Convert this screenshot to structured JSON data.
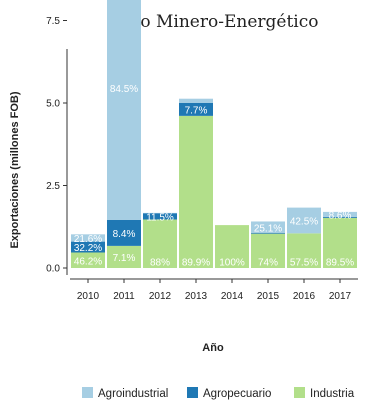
{
  "chart_data": {
    "type": "bar",
    "stacked": true,
    "title": "No Minero-Energético",
    "xlabel": "Año",
    "ylabel": "Exportaciones (millones FOB)",
    "ylim": [
      0,
      9.5
    ],
    "yticks": [
      0.0,
      2.5,
      5.0,
      7.5
    ],
    "ytick_labels": [
      "0.0",
      "2.5",
      "5.0",
      "7.5"
    ],
    "categories": [
      "2010",
      "2011",
      "2012",
      "2013",
      "2014",
      "2015",
      "2016",
      "2017"
    ],
    "series": [
      {
        "name": "Industria",
        "color": "#b2df8a",
        "values": [
          0.47,
          0.67,
          1.47,
          4.61,
          1.3,
          1.04,
          1.05,
          1.52
        ],
        "labels": [
          "46.2%",
          "7.1%",
          "88%",
          "89.9%",
          "100%",
          "74%",
          "57.5%",
          "89.5%"
        ]
      },
      {
        "name": "Agropecuario",
        "color": "#1f78b4",
        "values": [
          0.33,
          0.79,
          0.19,
          0.39,
          0.0,
          0.02,
          0.0,
          0.03
        ],
        "labels": [
          "32.2%",
          "8.4%",
          "11.5%",
          "7.7%",
          "",
          "",
          "",
          ""
        ]
      },
      {
        "name": "Agroindustrial",
        "color": "#a6cee3",
        "values": [
          0.22,
          7.99,
          0.01,
          0.13,
          0.0,
          0.35,
          0.78,
          0.15
        ],
        "labels": [
          "21.6%",
          "84.5%",
          "",
          "",
          "",
          "25.1%",
          "42.5%",
          "8.6%"
        ]
      }
    ],
    "legend": {
      "position": "bottom",
      "order": [
        "Agroindustrial",
        "Agropecuario",
        "Industria"
      ]
    }
  }
}
